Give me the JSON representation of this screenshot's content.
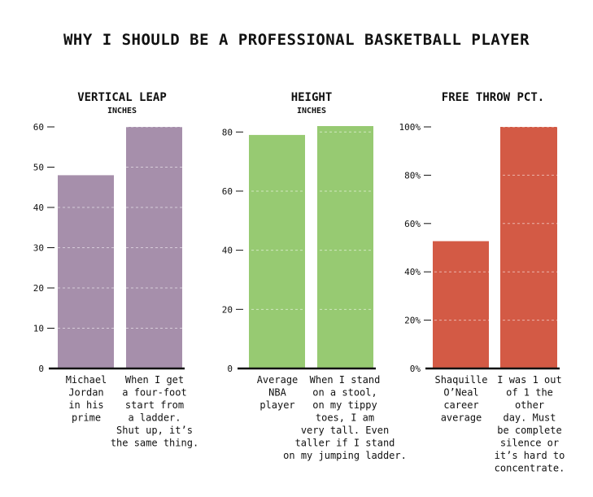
{
  "title": "WHY I SHOULD BE A PROFESSIONAL BASKETBALL PLAYER",
  "chart_data": [
    {
      "type": "bar",
      "title": "VERTICAL LEAP",
      "subtitle": "INCHES",
      "ylim": [
        0,
        60
      ],
      "yticks": [
        0,
        10,
        20,
        30,
        40,
        50,
        60
      ],
      "ytick_format": "",
      "categories": [
        [
          "Michael",
          "Jordan",
          "in his",
          "prime"
        ],
        [
          "When I get",
          "a four-foot",
          "start from",
          "a ladder.",
          "Shut up, it’s",
          "the same thing."
        ]
      ],
      "values": [
        48,
        60
      ],
      "color": "#a68fab",
      "grid": true
    },
    {
      "type": "bar",
      "title": "HEIGHT",
      "subtitle": "INCHES",
      "ylim": [
        0,
        82
      ],
      "yticks": [
        0,
        20,
        40,
        60,
        80
      ],
      "ytick_format": "",
      "categories": [
        [
          "Average",
          "NBA",
          "player"
        ],
        [
          "When I stand",
          "on a stool,",
          "on my tippy",
          "toes, I am",
          "very tall. Even",
          "taller if I stand",
          "on my jumping ladder."
        ]
      ],
      "values": [
        79,
        82
      ],
      "color": "#97ca72",
      "grid": true
    },
    {
      "type": "bar",
      "title": "FREE THROW PCT.",
      "subtitle": "",
      "ylim": [
        0,
        100
      ],
      "yticks": [
        0,
        20,
        40,
        60,
        80,
        100
      ],
      "ytick_format": "%",
      "categories": [
        [
          "Shaquille",
          "O’Neal",
          "career",
          "average"
        ],
        [
          "I was 1 out",
          "of 1 the",
          "other",
          "day. Must",
          "be complete",
          "silence or",
          "it’s hard to",
          "concentrate."
        ]
      ],
      "values": [
        52.7,
        100
      ],
      "color": "#d35a45",
      "grid": true
    }
  ]
}
